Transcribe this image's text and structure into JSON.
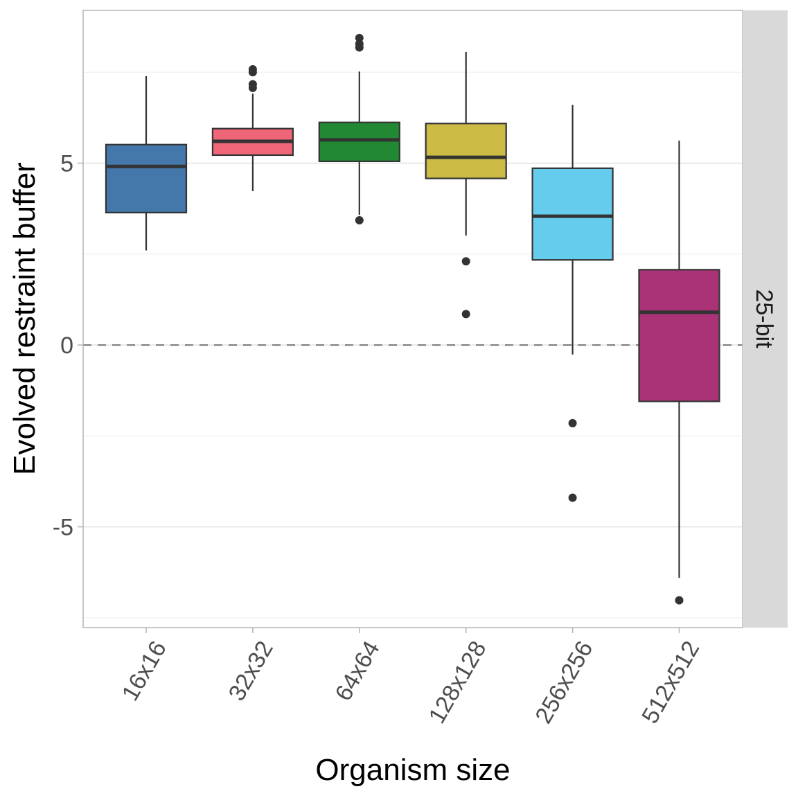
{
  "chart_data": {
    "type": "boxplot",
    "title": "",
    "xlabel": "Organism size",
    "ylabel": "Evolved restraint buffer",
    "facet_label": "25-bit",
    "categories": [
      "16x16",
      "32x32",
      "64x64",
      "128x128",
      "256x256",
      "512x512"
    ],
    "ylim": [
      -7.77,
      9.2
    ],
    "y_ticks": [
      -5,
      0,
      5
    ],
    "y_tick_labels": [
      "-5",
      "0",
      "5"
    ],
    "y_minor_gridlines": [
      -7.5,
      -2.5,
      2.5,
      7.5
    ],
    "reference_line": {
      "y": 0,
      "style": "dashed"
    },
    "grid": true,
    "legend": "none",
    "colors": [
      "#4477AA",
      "#EE6677",
      "#228833",
      "#CCBB44",
      "#66CCEE",
      "#AA3377"
    ],
    "boxes": [
      {
        "category": "16x16",
        "whisker_low": 2.6,
        "q1": 3.64,
        "median": 4.91,
        "q3": 5.51,
        "whisker_high": 7.39,
        "outliers": []
      },
      {
        "category": "32x32",
        "whisker_low": 4.23,
        "q1": 5.22,
        "median": 5.6,
        "q3": 5.95,
        "whisker_high": 6.91,
        "outliers": [
          7.58,
          7.5,
          7.17,
          7.07
        ]
      },
      {
        "category": "64x64",
        "whisker_low": 3.58,
        "q1": 5.05,
        "median": 5.64,
        "q3": 6.12,
        "whisker_high": 7.52,
        "outliers": [
          8.44,
          8.28,
          8.18,
          3.43
        ]
      },
      {
        "category": "128x128",
        "whisker_low": 3.01,
        "q1": 4.58,
        "median": 5.16,
        "q3": 6.09,
        "whisker_high": 8.06,
        "outliers": [
          2.3,
          0.85
        ]
      },
      {
        "category": "256x256",
        "whisker_low": -0.26,
        "q1": 2.34,
        "median": 3.54,
        "q3": 4.86,
        "whisker_high": 6.6,
        "outliers": [
          -2.15,
          -4.2
        ]
      },
      {
        "category": "512x512",
        "whisker_low": -6.4,
        "q1": -1.55,
        "median": 0.9,
        "q3": 2.07,
        "whisker_high": 5.62,
        "outliers": [
          -7.02
        ]
      }
    ]
  }
}
